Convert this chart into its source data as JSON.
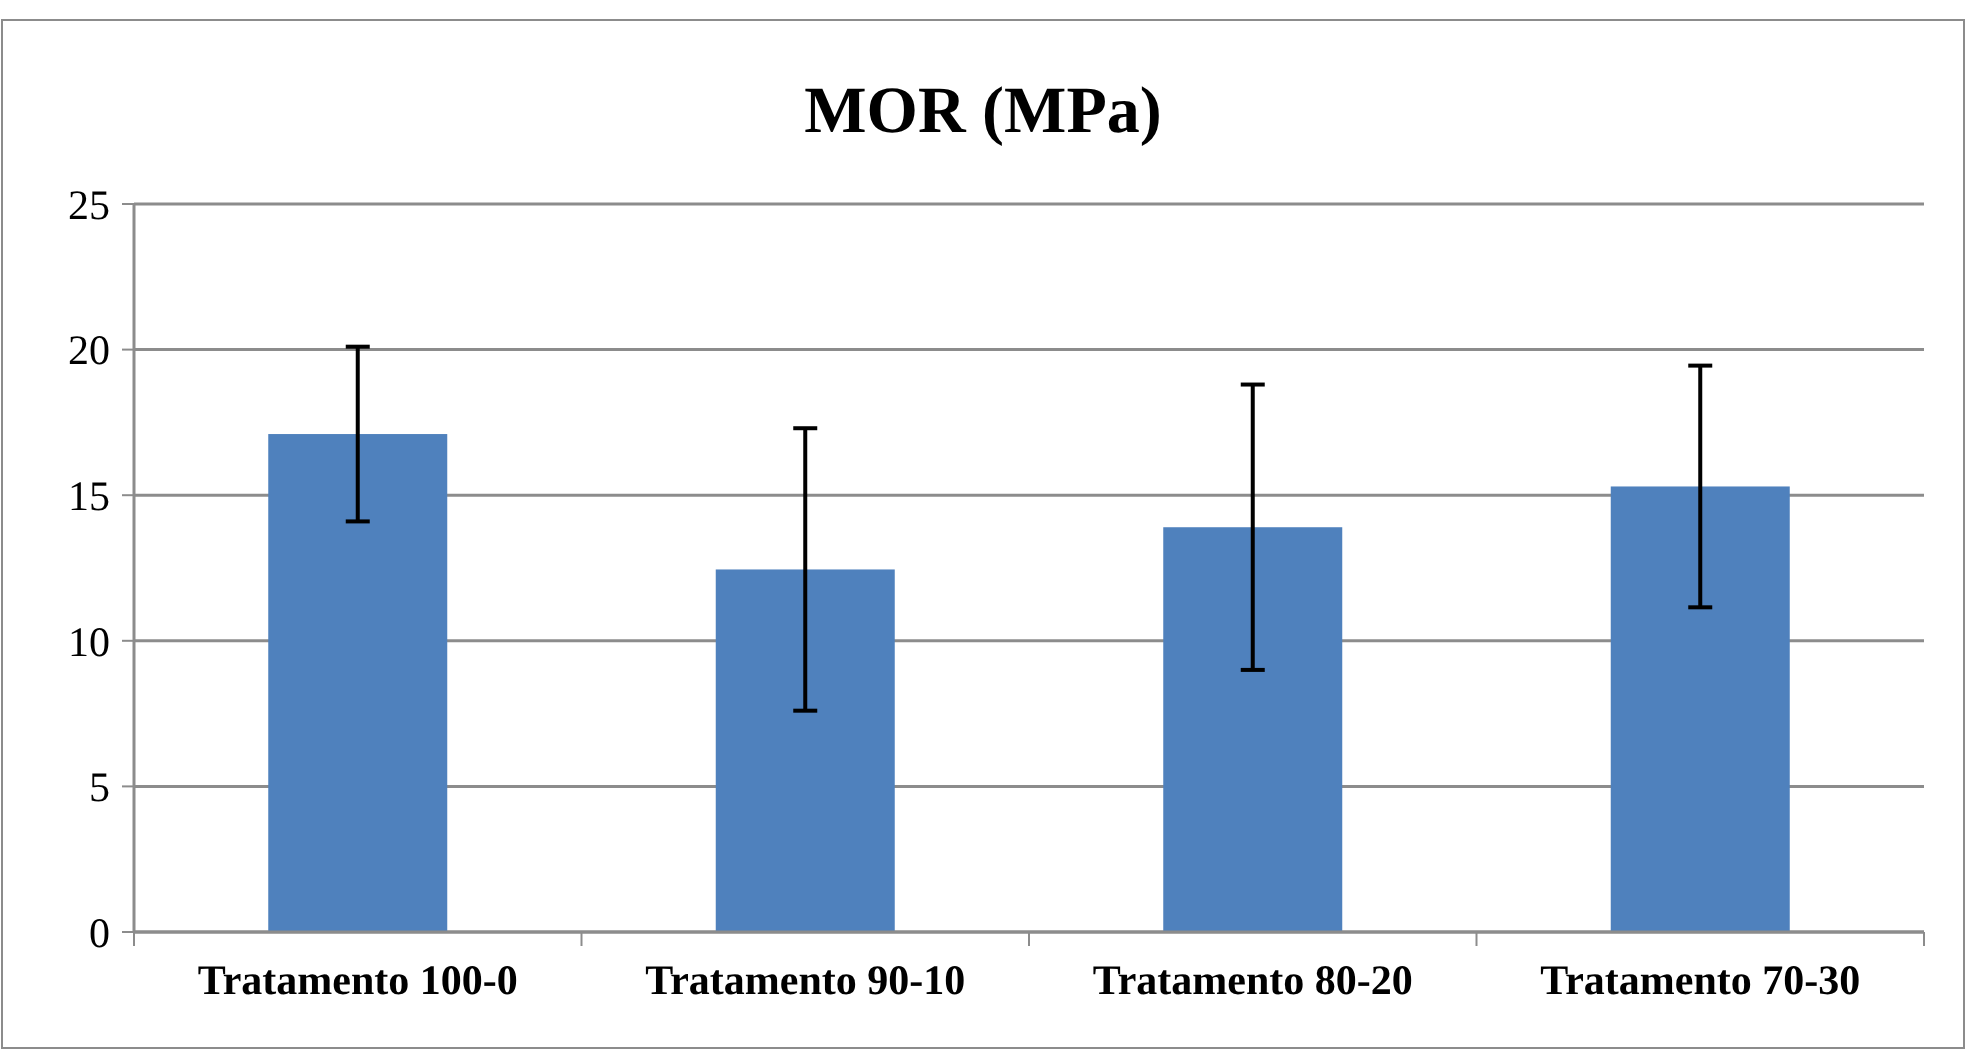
{
  "chart_data": {
    "type": "bar",
    "title": "MOR (MPa)",
    "categories": [
      "Tratamento 100-0",
      "Tratamento 90-10",
      "Tratamento 80-20",
      "Tratamento 70-30"
    ],
    "values": [
      17.1,
      12.45,
      13.9,
      15.3
    ],
    "errors": [
      3.0,
      4.85,
      4.9,
      4.15
    ],
    "color": "#4f81bd",
    "ylim": [
      0,
      25
    ],
    "yticks": [
      0,
      5,
      10,
      15,
      20,
      25
    ],
    "grid": "y"
  }
}
